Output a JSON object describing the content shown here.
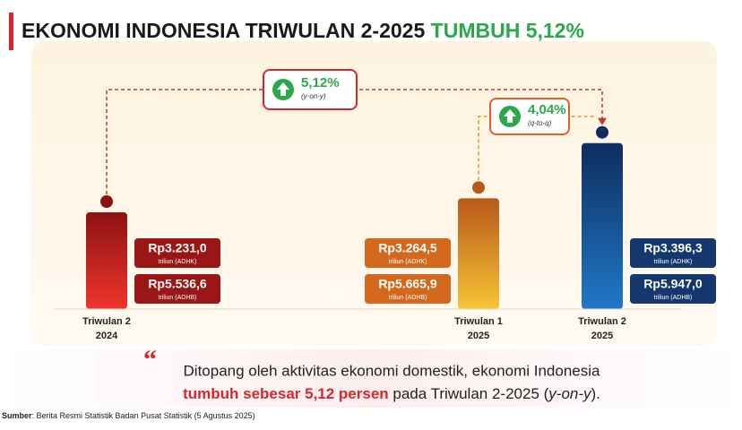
{
  "chart_data": {
    "type": "bar",
    "title": "EKONOMI INDONESIA TRIWULAN 2-2025",
    "title_highlight": "TUMBUH 5,12%",
    "categories": [
      [
        "Triwulan 2",
        "2024"
      ],
      [
        "Triwulan 1",
        "2025"
      ],
      [
        "Triwulan 2",
        "2025"
      ]
    ],
    "colors": [
      [
        "#f0352c",
        "#8c1212"
      ],
      [
        "#f7c534",
        "#b8581a"
      ],
      [
        "#1f78c8",
        "#0f2d5e"
      ]
    ],
    "box_colors": [
      "#9b1616",
      "#d4681c",
      "#14386e"
    ],
    "series": [
      {
        "name": "triliun (ADHK)",
        "values": [
          3231.0,
          3264.5,
          3396.3
        ],
        "value_labels": [
          "Rp3.231,0",
          "Rp3.264,5",
          "Rp3.396,3"
        ]
      },
      {
        "name": "triliun (ADHB)",
        "values": [
          5536.6,
          5665.9,
          5947.0
        ],
        "value_labels": [
          "Rp5.536,6",
          "Rp5.665,9",
          "Rp5.947,0"
        ]
      }
    ],
    "ylim": [
      3000,
      3600
    ],
    "annotations": [
      {
        "value": 5.12,
        "label": "5,12%",
        "note": "(y-on-y)"
      },
      {
        "value": 4.04,
        "label": "4,04%",
        "note": "(q-to-q)"
      }
    ],
    "quote": {
      "line1": "Ditopang oleh aktivitas ekonomi domestik, ekonomi Indonesia",
      "highlight": "tumbuh sebesar 5,12 persen",
      "rest": " pada Triwulan 2-2025 (",
      "italic": "y-on-y",
      "end": ")."
    },
    "source": {
      "label": "Sumber",
      "text": ": Berita Resmi Statistik Badan Pusat Statistik (5 Agustus 2025)"
    }
  }
}
